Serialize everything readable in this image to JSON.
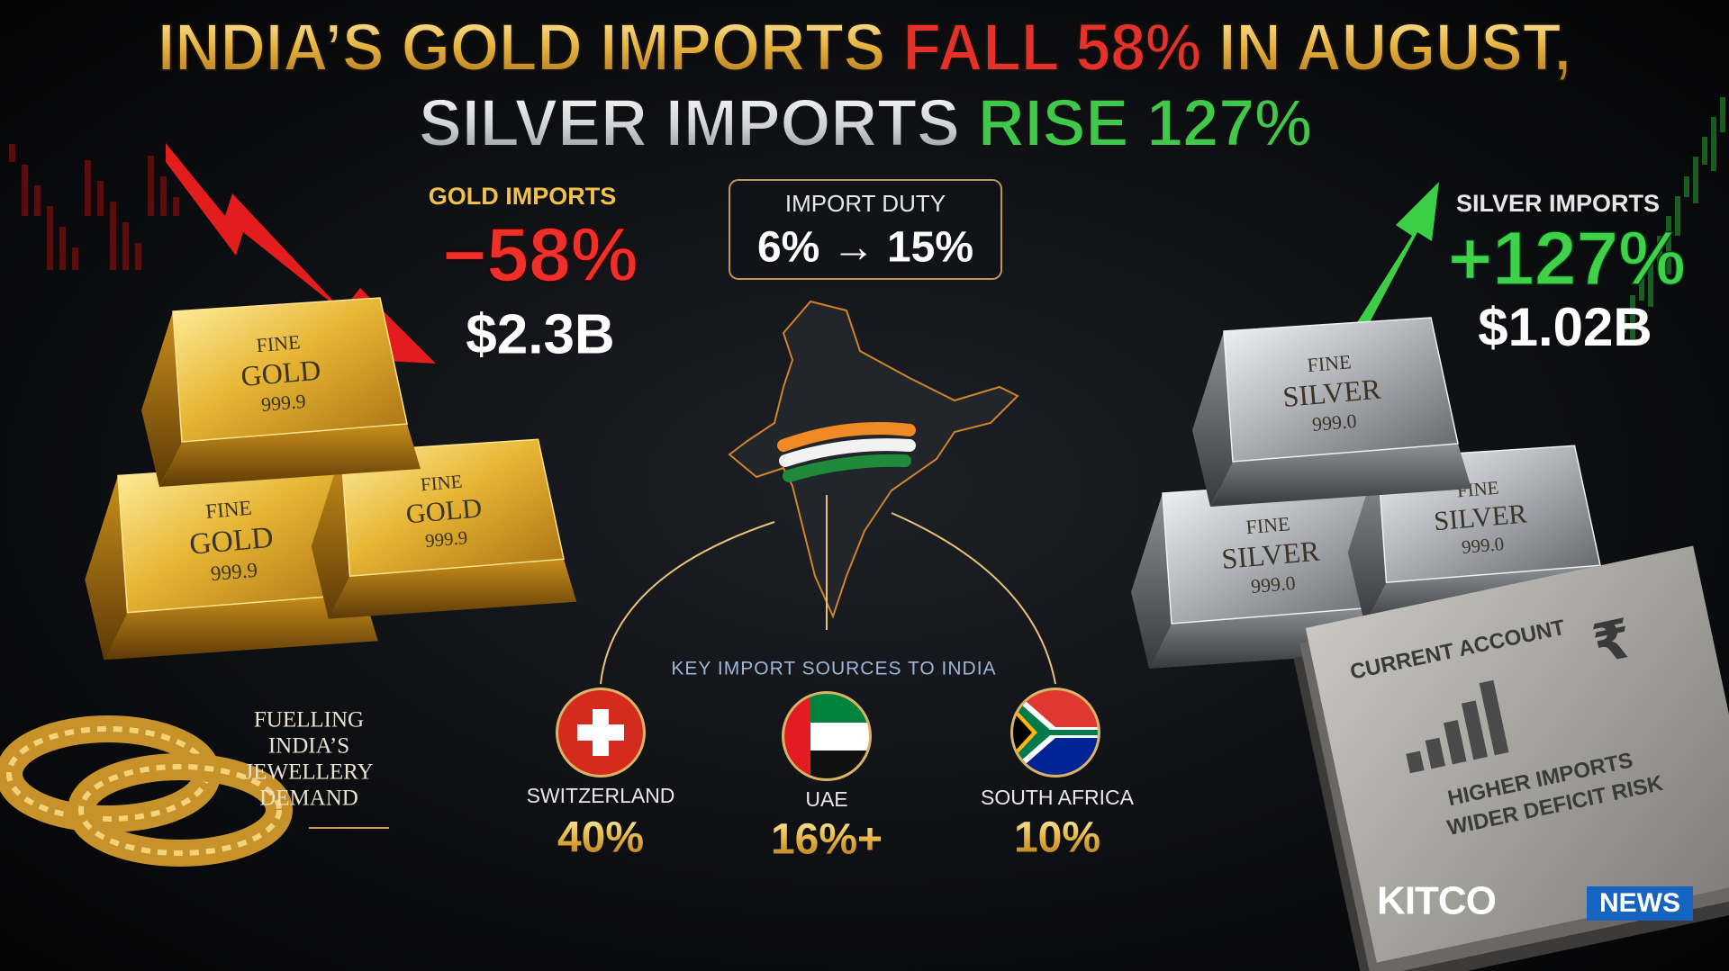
{
  "header": {
    "line1": [
      "INDIA’S GOLD IMPORTS ",
      "FALL 58%",
      " IN AUGUST,"
    ],
    "line2": [
      "SILVER IMPORTS ",
      "RISE 127%"
    ]
  },
  "gold": {
    "label": "GOLD IMPORTS",
    "change": "−58%",
    "value": "$2.3B",
    "bar_stamp": [
      "FINE",
      "GOLD",
      "999.9"
    ]
  },
  "duty": {
    "label": "IMPORT DUTY",
    "change": "6% → 15%"
  },
  "silver": {
    "label": "SILVER IMPORTS",
    "change": "+127%",
    "value": "$1.02B",
    "bar_stamp": [
      "FINE",
      "SILVER",
      "999.0"
    ]
  },
  "caption": [
    "FUELLING",
    "INDIA’S",
    "JEWELLERY",
    "DEMAND"
  ],
  "sources": {
    "title": "KEY IMPORT SOURCES TO INDIA",
    "items": [
      {
        "name": "SWITZERLAND",
        "share": "40%"
      },
      {
        "name": "UAE",
        "share": "16%+"
      },
      {
        "name": "SOUTH AFRICA",
        "share": "10%"
      }
    ]
  },
  "document": {
    "title": "CURRENT ACCOUNT",
    "symbol": "₹",
    "lines": [
      "HIGHER IMPORTS",
      "WIDER DEFICIT RISK"
    ]
  },
  "brand": {
    "name": "KITCO",
    "tag": "NEWS"
  }
}
